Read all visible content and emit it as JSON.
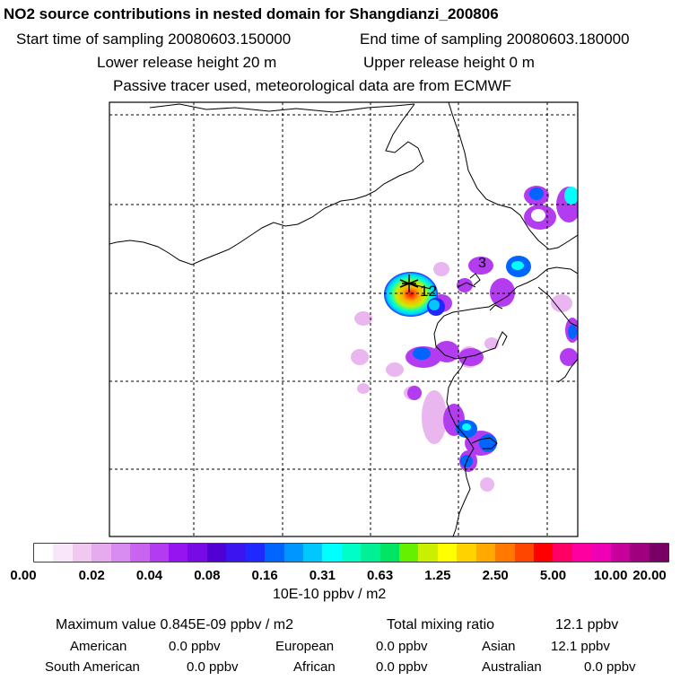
{
  "header": {
    "title": "NO2 source contributions in nested domain for Shangdianzi_200806",
    "start_time": "Start time of sampling 20080603.150000",
    "end_time": "End time of sampling 20080603.180000",
    "lower_height": "Lower release height   20 m",
    "upper_height": "Upper release height    0 m",
    "tracer_note": "Passive tracer used, meteorological data are from ECMWF"
  },
  "map": {
    "labels": [
      "12",
      "3"
    ]
  },
  "colorbar": {
    "colors": [
      "#ffffff",
      "#fae6fa",
      "#f0c8f0",
      "#e6aaee",
      "#d98cf0",
      "#c864f0",
      "#b43cf0",
      "#9614f0",
      "#780ae6",
      "#5000d2",
      "#3c14f0",
      "#1e28ff",
      "#0064ff",
      "#0096ff",
      "#00c8ff",
      "#00ffff",
      "#00ffc8",
      "#00f096",
      "#00e664",
      "#64f000",
      "#c8f000",
      "#ffff00",
      "#ffd200",
      "#ffaa00",
      "#ff7800",
      "#ff4600",
      "#ff0000",
      "#ff0064",
      "#ff00a0",
      "#f000b4",
      "#c8009b",
      "#a0007d",
      "#780064"
    ],
    "ticks": [
      "0.00",
      "0.02",
      "0.04",
      "0.08",
      "0.16",
      "0.31",
      "0.63",
      "1.25",
      "2.50",
      "5.00",
      "10.00",
      "20.00"
    ],
    "unit": "10E-10 ppbv / m2"
  },
  "stats": {
    "max_value": "Maximum value  0.845E-09 ppbv / m2",
    "total": "Total mixing ratio",
    "total_value": "12.1 ppbv",
    "american_label": "American",
    "american_value": "0.0 ppbv",
    "european_label": "European",
    "european_value": "0.0 ppbv",
    "asian_label": "Asian",
    "asian_value": "12.1 ppbv",
    "south_american_label": "South American",
    "south_american_value": "0.0 ppbv",
    "african_label": "African",
    "african_value": "0.0 ppbv",
    "australian_label": "Australian",
    "australian_value": "0.0 ppbv"
  }
}
